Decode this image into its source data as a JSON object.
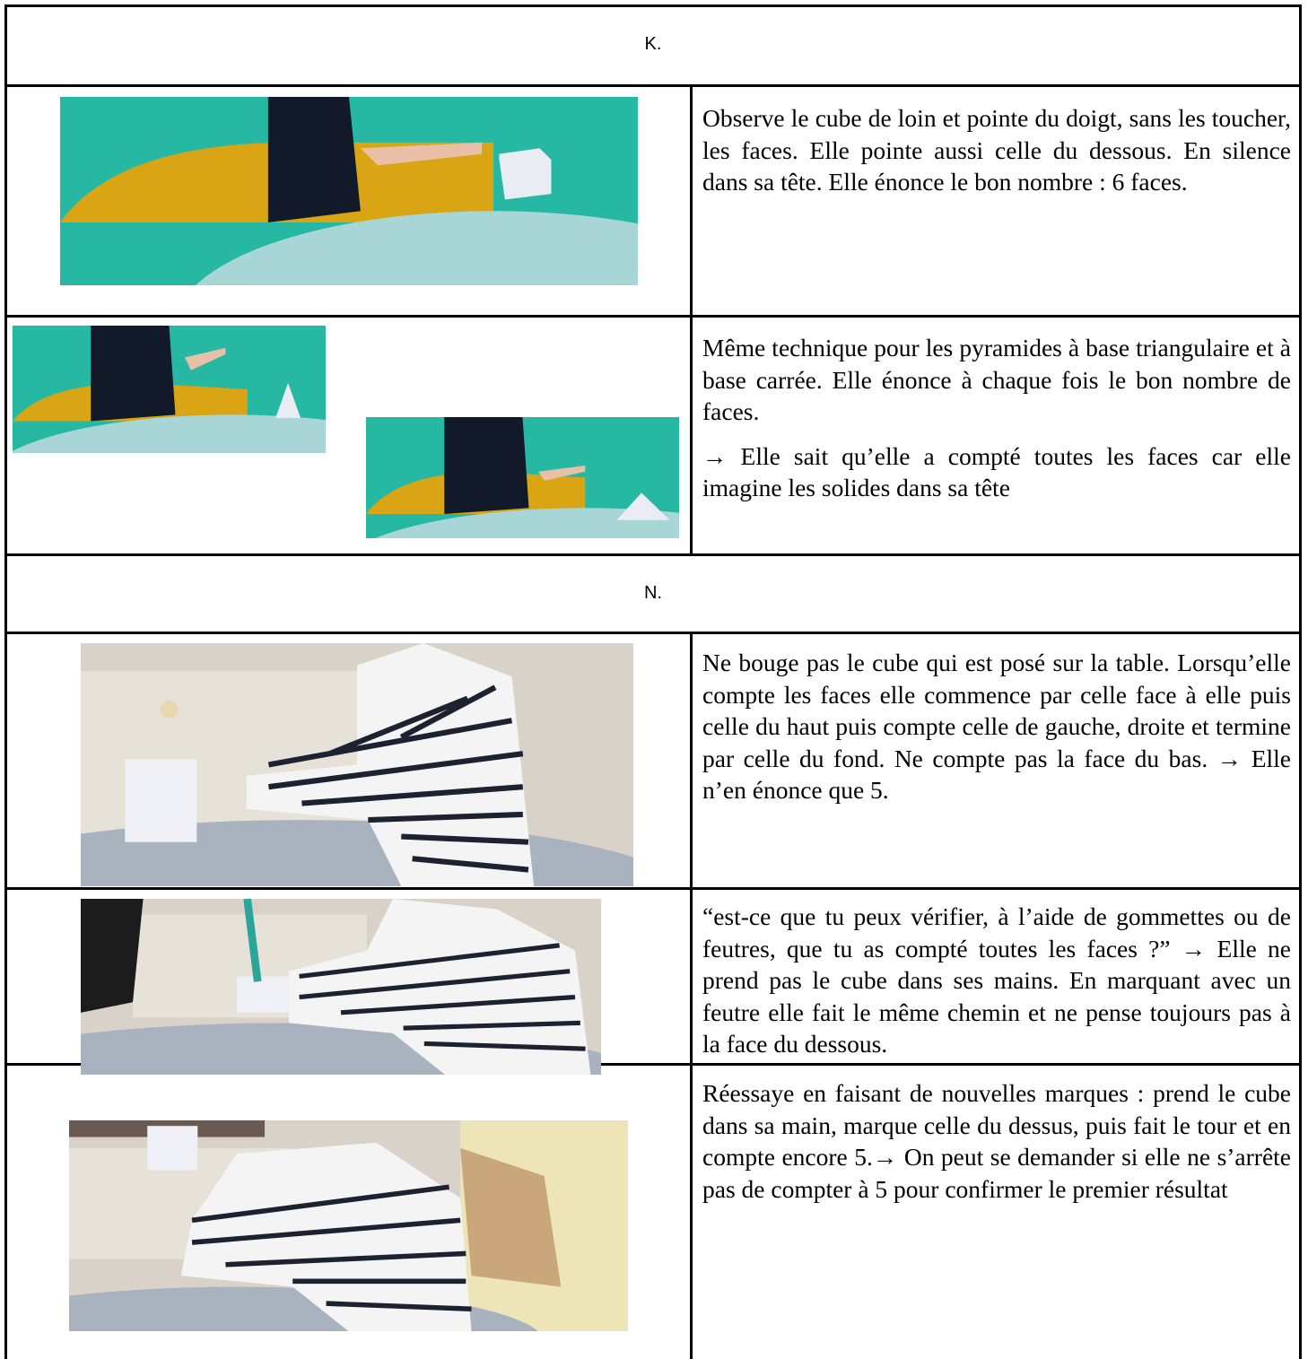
{
  "sections": [
    {
      "title": "K.",
      "rows": [
        {
          "paragraphs": [
            "Observe le cube de loin et pointe du doigt, sans les toucher, les faces. Elle pointe aussi celle du dessous. En silence dans sa tête. Elle énonce le bon nombre : 6 faces."
          ]
        },
        {
          "paragraphs": [
            "Même technique pour les pyramides à base triangulaire et à base carrée.  Elle énonce à chaque fois le bon nombre de faces.",
            "→ Elle sait qu’elle a compté toutes les faces car elle imagine les solides dans sa tête"
          ]
        }
      ]
    },
    {
      "title": "N.",
      "rows": [
        {
          "paragraphs": [
            "Ne bouge pas le cube qui est posé sur la table. Lorsqu’elle compte les faces elle commence par celle face à elle puis celle du haut puis compte celle de gauche, droite et termine par celle du fond. Ne compte pas la face du bas. → Elle n’en énonce que 5."
          ]
        },
        {
          "paragraphs": [
            "“est-ce que tu peux vérifier, à l’aide de gommettes ou de feutres, que tu as compté toutes les faces ?” → Elle ne prend pas le cube dans ses mains. En marquant avec un feutre elle fait le même chemin et ne pense toujours pas à la face du dessous."
          ]
        },
        {
          "paragraphs": [
            "Réessaye en faisant de nouvelles marques : prend le cube dans sa main, marque celle du dessus, puis fait le tour et en compte encore 5.→ On peut se demander si elle ne s’arrête pas de compter à 5 pour confirmer le premier résultat"
          ]
        }
      ]
    }
  ]
}
